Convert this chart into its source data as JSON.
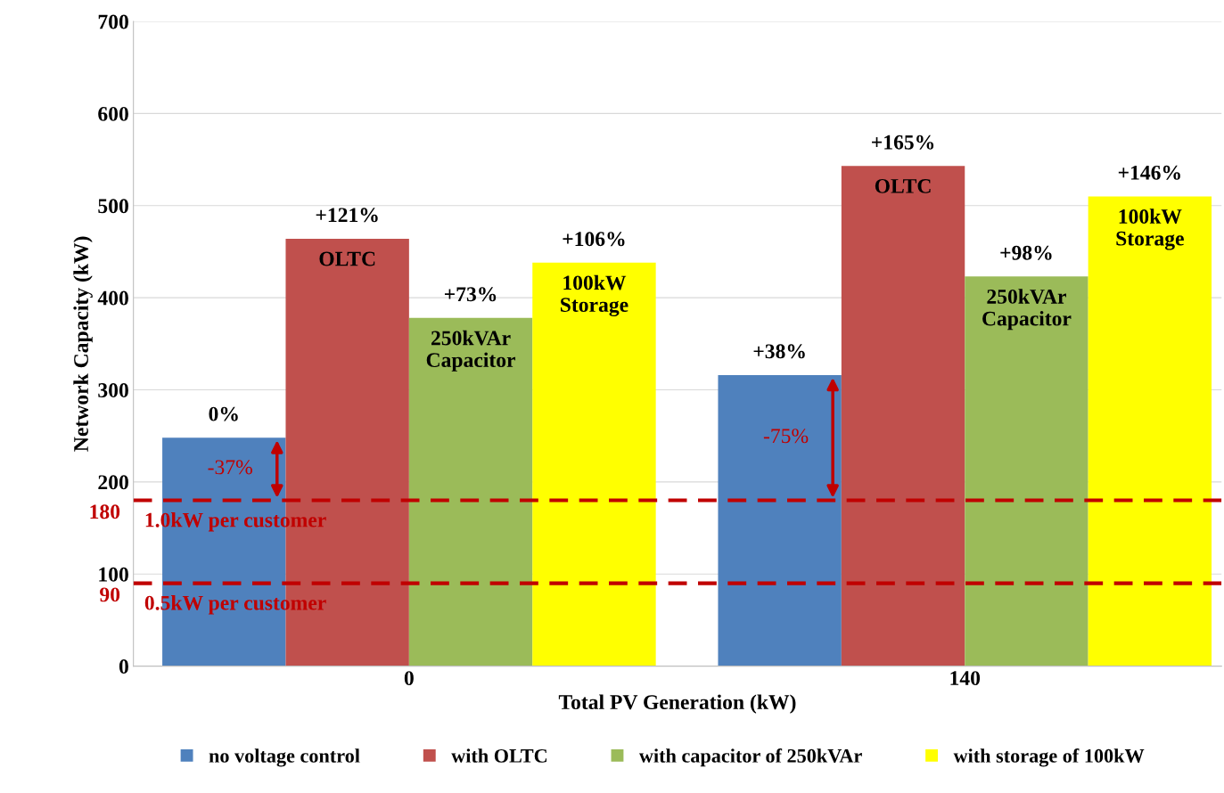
{
  "chart_data": {
    "type": "bar",
    "xlabel": "Total PV Generation (kW)",
    "ylabel": "Network Capacity (kW)",
    "categories": [
      "0",
      "140"
    ],
    "series": [
      {
        "name": "no voltage control",
        "color": "#4f81bd",
        "values": [
          248,
          316
        ]
      },
      {
        "name": "with OLTC",
        "color": "#c0504d",
        "values": [
          464,
          543
        ]
      },
      {
        "name": "with capacitor of 250kVAr",
        "color": "#9bbb59",
        "values": [
          378,
          423
        ]
      },
      {
        "name": "with storage of 100kW",
        "color": "#ffff00",
        "values": [
          438,
          510
        ]
      }
    ],
    "ylim": [
      0,
      700
    ],
    "yticks": [
      0,
      100,
      200,
      300,
      400,
      500,
      600,
      700
    ],
    "grid": "y",
    "legend": "bottom",
    "ref_lines": [
      {
        "axis": "y",
        "value": 180,
        "label": "1.0kW per customer",
        "color": "#c00000",
        "line_style": "dashed"
      },
      {
        "axis": "y",
        "value": 90,
        "label": "0.5kW per customer",
        "color": "#c00000",
        "line_style": "dashed"
      }
    ],
    "annotations": [
      "180",
      "90",
      "0%",
      "-37%",
      "+121%",
      "OLTC",
      "+73%",
      "250kVAr\nCapacitor",
      "+106%",
      "100kW\nStorage",
      "+38%",
      "-75%",
      "+165%",
      "OLTC",
      "+98%",
      "250kVAr\nCapacitor",
      "+146%",
      "100kW\nStorage"
    ]
  }
}
